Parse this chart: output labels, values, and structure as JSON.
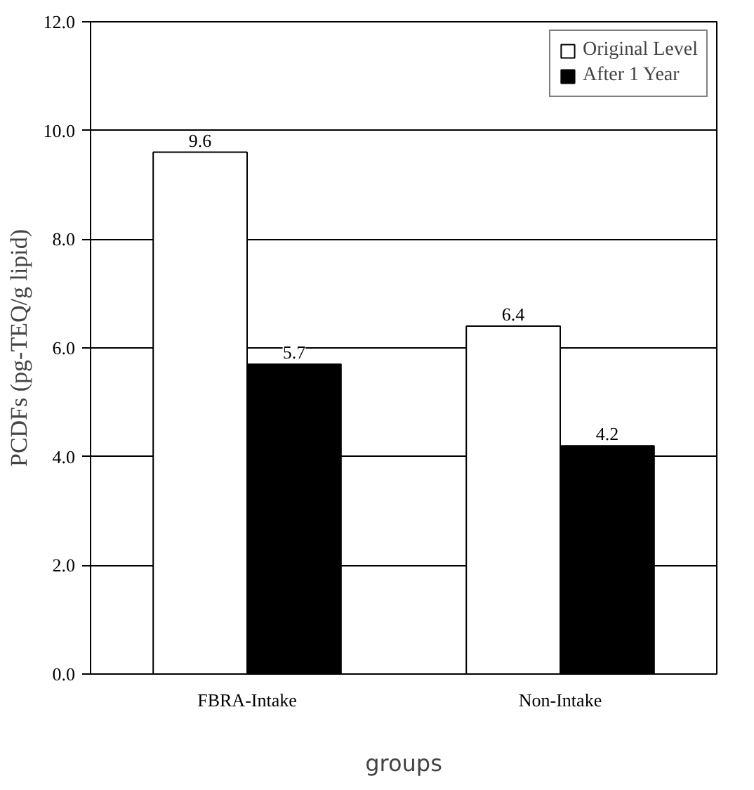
{
  "chart_data": {
    "type": "bar",
    "xlabel": "groups",
    "ylabel": "PCDFs (pg-TEQ/g lipid)",
    "categories": [
      "FBRA-Intake",
      "Non-Intake"
    ],
    "series": [
      {
        "name": "Original Level",
        "color": "#ffffff",
        "values": [
          9.6,
          6.4
        ]
      },
      {
        "name": "After 1 Year",
        "color": "#000000",
        "values": [
          5.7,
          4.2
        ]
      }
    ],
    "ylim": [
      0,
      12
    ],
    "yticks": [
      {
        "value": 0,
        "label": "0.0"
      },
      {
        "value": 2,
        "label": "2.0"
      },
      {
        "value": 4,
        "label": "4.0"
      },
      {
        "value": 6,
        "label": "6.0"
      },
      {
        "value": 8,
        "label": "8.0"
      },
      {
        "value": 10,
        "label": "10.0"
      },
      {
        "value": 12,
        "label": "12.0"
      }
    ],
    "grid": "y",
    "legend": "top right",
    "data_labels": true
  }
}
